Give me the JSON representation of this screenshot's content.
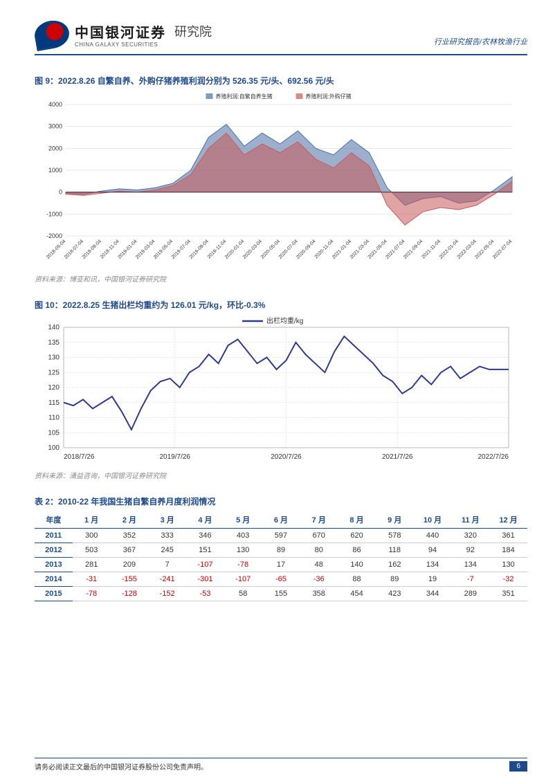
{
  "header": {
    "logo_cn": "中国银河证券",
    "logo_en": "CHINA GALAXY SECURITIES",
    "logo_suffix": "研究院",
    "right_text": "行业研究报告/农林牧渔行业"
  },
  "chart9": {
    "title": "图 9：2022.8.26 自繁自养、外购仔猪养殖利润分别为 526.35 元/头、692.56 元/头",
    "type": "area",
    "legend": [
      "养殖利润:自繁自养生猪",
      "养殖利润:外购仔猪"
    ],
    "legend_colors": [
      "#4A6FA5",
      "#C85A5A"
    ],
    "ylim": [
      -2000,
      4000
    ],
    "ytick_step": 1000,
    "yticks": [
      -2000,
      -1000,
      0,
      1000,
      2000,
      3000,
      4000
    ],
    "xlabels": [
      "2018-05-04",
      "2018-07-04",
      "2018-09-04",
      "2018-11-04",
      "2019-01-04",
      "2019-03-04",
      "2019-05-04",
      "2019-07-04",
      "2019-09-04",
      "2019-11-04",
      "2020-01-04",
      "2020-03-04",
      "2020-05-04",
      "2020-07-04",
      "2020-09-04",
      "2020-11-04",
      "2021-01-04",
      "2021-03-04",
      "2021-05-04",
      "2021-07-04",
      "2021-09-04",
      "2021-11-04",
      "2022-01-04",
      "2022-03-04",
      "2022-05-04",
      "2022-07-04"
    ],
    "series1": [
      -50,
      -100,
      50,
      150,
      100,
      200,
      400,
      1000,
      2500,
      3100,
      2100,
      2700,
      2200,
      2800,
      2000,
      1700,
      2400,
      1800,
      200,
      -600,
      -300,
      -200,
      -500,
      -400,
      100,
      700
    ],
    "series2": [
      -100,
      -150,
      -50,
      50,
      0,
      100,
      300,
      800,
      2000,
      2700,
      1700,
      2200,
      1800,
      2300,
      1500,
      1100,
      1800,
      1200,
      -600,
      -1500,
      -900,
      -700,
      -800,
      -600,
      -100,
      500
    ],
    "grid_color": "#d0d0d0",
    "background_color": "#ffffff",
    "source": "资料来源：博亚和讯，中国银河证券研究院"
  },
  "chart10": {
    "title": "图 10：2022.8.25 生猪出栏均重约为 126.01 元/kg，环比-0.3%",
    "type": "line",
    "legend_label": "出栏均重/kg",
    "line_color": "#2E3A8C",
    "line_width": 2,
    "ylim": [
      100,
      140
    ],
    "ytick_step": 5,
    "yticks": [
      100,
      105,
      110,
      115,
      120,
      125,
      130,
      135,
      140
    ],
    "xlabels": [
      "2018/7/26",
      "2019/7/26",
      "2020/7/26",
      "2021/7/26",
      "2022/7/26"
    ],
    "values": [
      115,
      114,
      116,
      113,
      115,
      117,
      112,
      106,
      113,
      119,
      122,
      123,
      120,
      125,
      127,
      131,
      128,
      134,
      136,
      132,
      128,
      130,
      126,
      129,
      135,
      131,
      128,
      125,
      132,
      137,
      134,
      131,
      128,
      124,
      122,
      118,
      120,
      124,
      121,
      125,
      127,
      123,
      125,
      127,
      126,
      126,
      126
    ],
    "grid_color": "#cfcfcf",
    "background_color": "#ffffff",
    "source": "资料来源：涌益咨询，中国银河证券研究院"
  },
  "table2": {
    "title": "表 2：2010-22 年我国生猪自繁自养月度利润情况",
    "columns": [
      "年度",
      "1 月",
      "2 月",
      "3 月",
      "4 月",
      "5 月",
      "6 月",
      "7 月",
      "8 月",
      "9 月",
      "10 月",
      "11 月",
      "12 月"
    ],
    "rows": [
      {
        "year": "2011",
        "v": [
          300,
          352,
          333,
          346,
          403,
          597,
          670,
          620,
          578,
          440,
          320,
          361
        ]
      },
      {
        "year": "2012",
        "v": [
          503,
          367,
          245,
          151,
          130,
          89,
          80,
          86,
          118,
          94,
          92,
          184
        ]
      },
      {
        "year": "2013",
        "v": [
          281,
          209,
          7,
          -107,
          -78,
          17,
          48,
          140,
          162,
          134,
          134,
          130
        ]
      },
      {
        "year": "2014",
        "v": [
          -31,
          -155,
          -241,
          -301,
          -107,
          -65,
          -36,
          88,
          89,
          19,
          -7,
          -32
        ]
      },
      {
        "year": "2015",
        "v": [
          -78,
          -128,
          -152,
          -53,
          58,
          155,
          358,
          454,
          423,
          344,
          289,
          351
        ]
      }
    ],
    "neg_color": "#c00000",
    "header_color": "#1E4A8C"
  },
  "footer": {
    "text": "请务必阅读正文最后的中国银河证券股份公司免责声明。",
    "page": "6"
  }
}
